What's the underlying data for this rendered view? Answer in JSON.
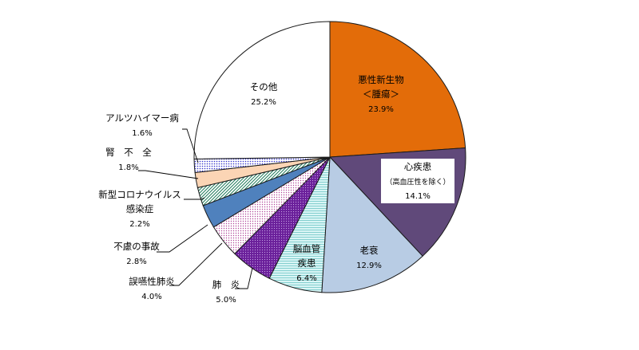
{
  "chart_data": {
    "type": "pie",
    "title": "",
    "unit": "%",
    "start": "12 o'clock",
    "direction": "clockwise",
    "slices": [
      {
        "name": "悪性新生物",
        "sub": "＜腫瘍＞",
        "value": 23.9,
        "value_label": "23.9%",
        "color": "#E36C09",
        "pattern": "solid"
      },
      {
        "name": "心疾患",
        "sub": "（高血圧性を除く）",
        "value": 14.1,
        "value_label": "14.1%",
        "color": "#60497A",
        "pattern": "solid"
      },
      {
        "name": "老衰",
        "sub": "",
        "value": 12.9,
        "value_label": "12.9%",
        "color": "#B8CCE4",
        "pattern": "solid"
      },
      {
        "name": "脳血管",
        "sub": "疾患",
        "value": 6.4,
        "value_label": "6.4%",
        "color": "#C6EFEF",
        "pattern": "hlines"
      },
      {
        "name": "肺　炎",
        "sub": "",
        "value": 5.0,
        "value_label": "5.0%",
        "color": "#7030A0",
        "pattern": "dots-dark"
      },
      {
        "name": "誤嚥性肺炎",
        "sub": "",
        "value": 4.0,
        "value_label": "4.0%",
        "color": "#E6B9D8",
        "pattern": "dots-light"
      },
      {
        "name": "不慮の事故",
        "sub": "",
        "value": 2.8,
        "value_label": "2.8%",
        "color": "#4F81BD",
        "pattern": "solid"
      },
      {
        "name": "新型コロナウイルス",
        "sub": "感染症",
        "value": 2.2,
        "value_label": "2.2%",
        "color": "#1F7A5A",
        "pattern": "diag"
      },
      {
        "name": "腎　不　全",
        "sub": "",
        "value": 1.8,
        "value_label": "1.8%",
        "color": "#FBD5B5",
        "pattern": "solid"
      },
      {
        "name": "アルツハイマー病",
        "sub": "",
        "value": 1.6,
        "value_label": "1.6%",
        "color": "#3333CC",
        "pattern": "grid"
      },
      {
        "name": "その他",
        "sub": "",
        "value": 25.2,
        "value_label": "25.2%",
        "color": "#FFFFFF",
        "pattern": "solid"
      }
    ]
  }
}
